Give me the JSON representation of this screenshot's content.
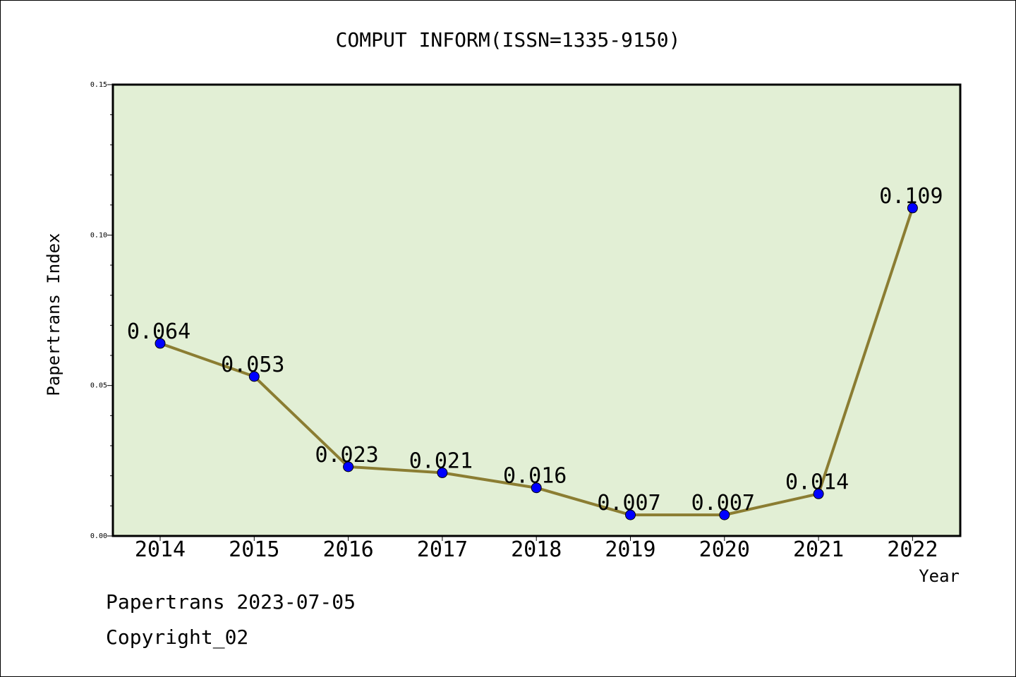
{
  "chart_data": {
    "type": "line",
    "title": "COMPUT INFORM(ISSN=1335-9150)",
    "xlabel": "Year",
    "ylabel": "Papertrans Index",
    "categories": [
      "2014",
      "2015",
      "2016",
      "2017",
      "2018",
      "2019",
      "2020",
      "2021",
      "2022"
    ],
    "values": [
      0.064,
      0.053,
      0.023,
      0.021,
      0.016,
      0.007,
      0.007,
      0.014,
      0.109
    ],
    "data_labels": [
      "0.064",
      "0.053",
      "0.023",
      "0.021",
      "0.016",
      "0.007",
      "0.007",
      "0.014",
      "0.109"
    ],
    "ylim": [
      0,
      0.15
    ],
    "yticks": [
      0.0,
      0.05,
      0.1,
      0.15
    ],
    "ytick_labels": [
      "0.00",
      "0.05",
      "0.10",
      "0.15"
    ],
    "grid": false,
    "colors": {
      "plot_background": "#e2efd5",
      "line": "#8b7d32",
      "marker": "#0000ff"
    }
  },
  "footer": {
    "line1": "Papertrans 2023-07-05",
    "line2": "Copyright_02"
  }
}
